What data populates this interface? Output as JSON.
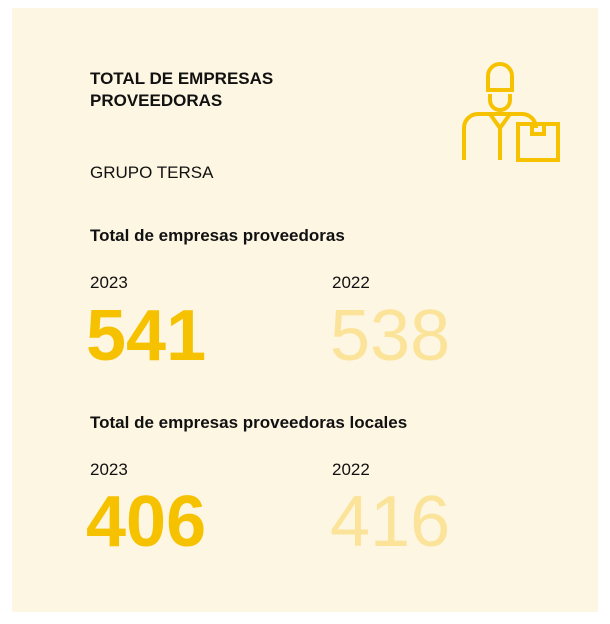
{
  "header": {
    "title": "TOTAL DE EMPRESAS PROVEEDORAS",
    "group": "GRUPO TERSA"
  },
  "sections": [
    {
      "heading": "Total de empresas proveedoras",
      "current": {
        "year": "2023",
        "value": "541"
      },
      "previous": {
        "year": "2022",
        "value": "538"
      }
    },
    {
      "heading": "Total de empresas proveedoras locales",
      "current": {
        "year": "2023",
        "value": "406"
      },
      "previous": {
        "year": "2022",
        "value": "416"
      }
    }
  ]
}
